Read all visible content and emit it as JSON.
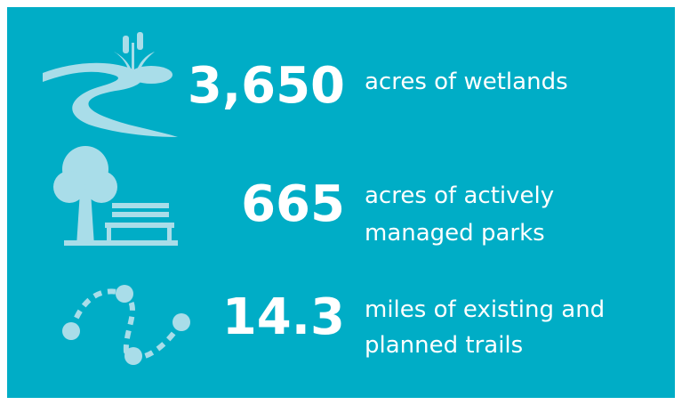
{
  "items": [
    {
      "value": "3,650",
      "label_lines": [
        "acres of wetlands"
      ]
    },
    {
      "value": "665",
      "label_lines": [
        "acres of actively",
        "managed parks"
      ]
    },
    {
      "value": "14.3",
      "label_lines": [
        "miles of existing and",
        "planned trails"
      ]
    }
  ]
}
